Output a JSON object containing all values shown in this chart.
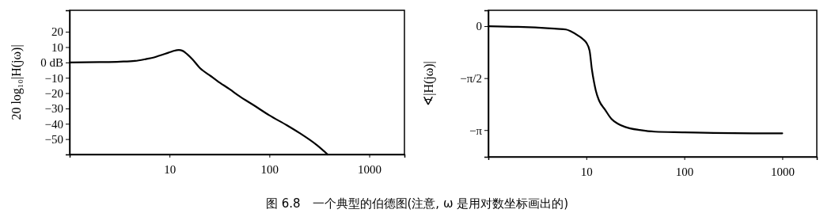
{
  "chart_data": [
    {
      "type": "line",
      "xlabel": null,
      "ylabel": "20 log₁₀|H(jω)|",
      "log": "x",
      "xlim": [
        1,
        2250
      ],
      "ylim": [
        -60,
        34
      ],
      "xticks": [
        10,
        100,
        1000
      ],
      "yticks": [
        20,
        10,
        {
          "value": 0,
          "label": "0 dB"
        },
        -10,
        -20,
        -30,
        -40,
        -50
      ],
      "grid": false,
      "marker": "none",
      "line_style": "solid",
      "annotations": [
        "图 6.8　一个典型的伯德图(注意, ω 是用对数坐标画出的)"
      ],
      "series": [
        {
          "color": "#000000",
          "x": [
            1,
            2,
            3.2,
            4.5,
            5.8,
            7,
            7.8,
            9,
            10,
            11,
            12.4,
            13.5,
            15,
            17,
            20,
            26,
            30,
            40,
            50,
            70,
            100,
            150,
            200,
            300,
            383
          ],
          "values": [
            0,
            0.2,
            0.5,
            1,
            2.2,
            3.3,
            4.3,
            5.6,
            6.6,
            7.5,
            8.1,
            7.6,
            5.4,
            2,
            -3.4,
            -9,
            -12,
            -17.5,
            -22,
            -28,
            -34.5,
            -41,
            -46,
            -54,
            -60
          ]
        }
      ]
    },
    {
      "type": "line",
      "ylabel": "∢|H(jω)|",
      "log": "x",
      "xlim": [
        1,
        2250
      ],
      "ylim": [
        -3.95,
        0.48
      ],
      "xticks": [
        10,
        100,
        1000
      ],
      "yticks": [
        {
          "value": 0,
          "label": "0"
        },
        {
          "value": -1.5708,
          "label": "−π/2"
        },
        {
          "value": -3.1416,
          "label": "−π"
        }
      ],
      "grid": false,
      "marker": "none",
      "line_style": "solid",
      "series": [
        {
          "color": "#000000",
          "x": [
            1,
            2,
            3,
            4,
            5,
            6.2,
            7,
            8.4,
            9.3,
            10,
            10.8,
            11.4,
            12,
            12.5,
            13.5,
            15.5,
            18,
            21,
            25,
            28,
            35,
            50,
            100,
            200,
            500,
            1000
          ],
          "values": [
            0,
            -0.02,
            -0.04,
            -0.06,
            -0.08,
            -0.1,
            -0.16,
            -0.3,
            -0.4,
            -0.5,
            -0.74,
            -1.31,
            -1.7,
            -1.95,
            -2.25,
            -2.52,
            -2.8,
            -2.95,
            -3.05,
            -3.09,
            -3.14,
            -3.19,
            -3.21,
            -3.23,
            -3.24,
            -3.24
          ]
        }
      ]
    }
  ]
}
